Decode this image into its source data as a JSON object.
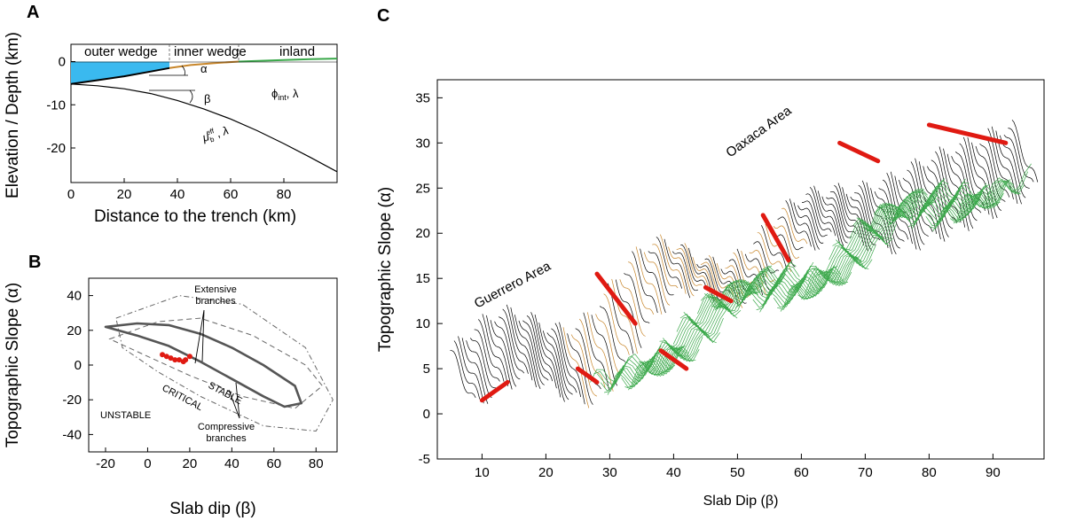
{
  "chart_data": [
    {
      "panel": "A",
      "type": "line",
      "xlabel": "Distance to the trench (km)",
      "ylabel": "Elevation / Depth (km)",
      "xlim": [
        0,
        100
      ],
      "ylim": [
        -28,
        4
      ],
      "xticks": [
        0,
        20,
        40,
        60,
        80
      ],
      "yticks": [
        0,
        -10,
        -20
      ],
      "zones": [
        "outer wedge",
        "inner wedge",
        "inland"
      ],
      "zone_boundaries": [
        37,
        63
      ],
      "symbols": {
        "alpha": "α",
        "beta": "β",
        "phi": "ϕ",
        "phi_sub": "int",
        "lambda": ", λ",
        "lambda2": "λ",
        "mu": "μ",
        "mu_sub": "b",
        "mu_sup": "eff"
      },
      "series": [
        {
          "role": "topography",
          "x": [
            0,
            10,
            20,
            30,
            37,
            45,
            55,
            63,
            75,
            90,
            100
          ],
          "y": [
            -5.2,
            -4.3,
            -3.4,
            -2.3,
            -1.5,
            -0.8,
            -0.3,
            0,
            0.25,
            0.55,
            0.7
          ]
        },
        {
          "role": "slab",
          "x": [
            0,
            10,
            20,
            30,
            40,
            50,
            60,
            70,
            80,
            90,
            100
          ],
          "y": [
            -5.2,
            -5.6,
            -6.3,
            -7.4,
            -9.0,
            -11.0,
            -13.3,
            -16.0,
            -19.0,
            -22.2,
            -25.5
          ]
        }
      ],
      "colors": {
        "water": "#3ab9ef",
        "inner": "#c8862a",
        "inland": "#3aa84a"
      }
    },
    {
      "panel": "B",
      "type": "line",
      "xlabel": "Slab dip (β)",
      "ylabel": "Topographic Slope (α)",
      "xlim": [
        -28,
        90
      ],
      "ylim": [
        -50,
        50
      ],
      "xticks": [
        -20,
        0,
        20,
        40,
        60,
        80
      ],
      "yticks": [
        40,
        20,
        0,
        -20,
        -40
      ],
      "annotations": [
        "Extensive branches",
        "Compressive branches",
        "STABLE",
        "CRITICAL",
        "UNSTABLE"
      ],
      "series": [
        {
          "role": "stable-envelope",
          "x": [
            -20,
            -5,
            10,
            25,
            40,
            55,
            70,
            73,
            65,
            55,
            40,
            25,
            10,
            -5,
            -20
          ],
          "y": [
            22,
            24,
            23,
            18,
            10,
            0,
            -12,
            -22,
            -24,
            -18,
            -8,
            2,
            11,
            17,
            22
          ]
        },
        {
          "role": "dashed-envelope",
          "x": [
            -18,
            5,
            25,
            50,
            75,
            83,
            70,
            45,
            20,
            0,
            -18
          ],
          "y": [
            15,
            25,
            27,
            17,
            0,
            -12,
            -25,
            -18,
            -6,
            5,
            15
          ]
        },
        {
          "role": "dashdot-envelope",
          "x": [
            -15,
            15,
            45,
            75,
            88,
            80,
            55,
            25,
            5,
            -12,
            -15
          ],
          "y": [
            27,
            40,
            35,
            10,
            -20,
            -38,
            -35,
            -18,
            -4,
            10,
            27
          ]
        }
      ],
      "points": {
        "x": [
          7,
          9,
          11,
          13,
          15,
          17,
          18,
          20
        ],
        "y": [
          6,
          5,
          4,
          3,
          3,
          2,
          3,
          5
        ]
      }
    },
    {
      "panel": "C",
      "type": "line",
      "xlabel": "Slab Dip (β)",
      "ylabel": "Topographic Slope (α)",
      "xlim": [
        3,
        98
      ],
      "ylim": [
        -5,
        37
      ],
      "xticks": [
        10,
        20,
        30,
        40,
        50,
        60,
        70,
        80,
        90
      ],
      "yticks": [
        35,
        30,
        25,
        20,
        15,
        10,
        5,
        0,
        -5
      ],
      "annotations": [
        "Guerrero Area",
        "Oaxaca Area"
      ],
      "colors": {
        "black": "#000000",
        "orange": "#c8862a",
        "green": "#3aa84a",
        "red": "#e01a12"
      }
    }
  ],
  "panel_letters": {
    "A": "A",
    "B": "B",
    "C": "C"
  }
}
